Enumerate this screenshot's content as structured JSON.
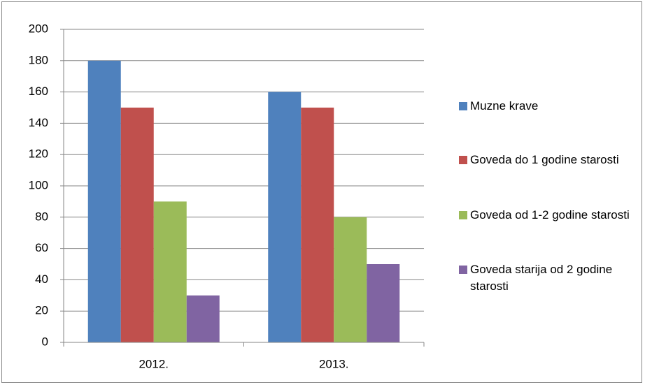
{
  "chart_data": {
    "type": "bar",
    "categories": [
      "2012.",
      "2013."
    ],
    "series": [
      {
        "name": "Muzne krave",
        "color": "#4f81bd",
        "values": [
          180,
          160
        ]
      },
      {
        "name": "Goveda do 1 godine starosti",
        "color": "#c0504d",
        "values": [
          150,
          150
        ]
      },
      {
        "name": "Goveda od 1-2 godine starosti",
        "color": "#9bbb59",
        "values": [
          90,
          80
        ]
      },
      {
        "name": "Goveda starija od 2 godine starosti",
        "color": "#8064a2",
        "values": [
          30,
          50
        ]
      }
    ],
    "ylim": [
      0,
      200
    ],
    "yticks": [
      0,
      20,
      40,
      60,
      80,
      100,
      120,
      140,
      160,
      180,
      200
    ],
    "grid": true,
    "legend": "right"
  }
}
